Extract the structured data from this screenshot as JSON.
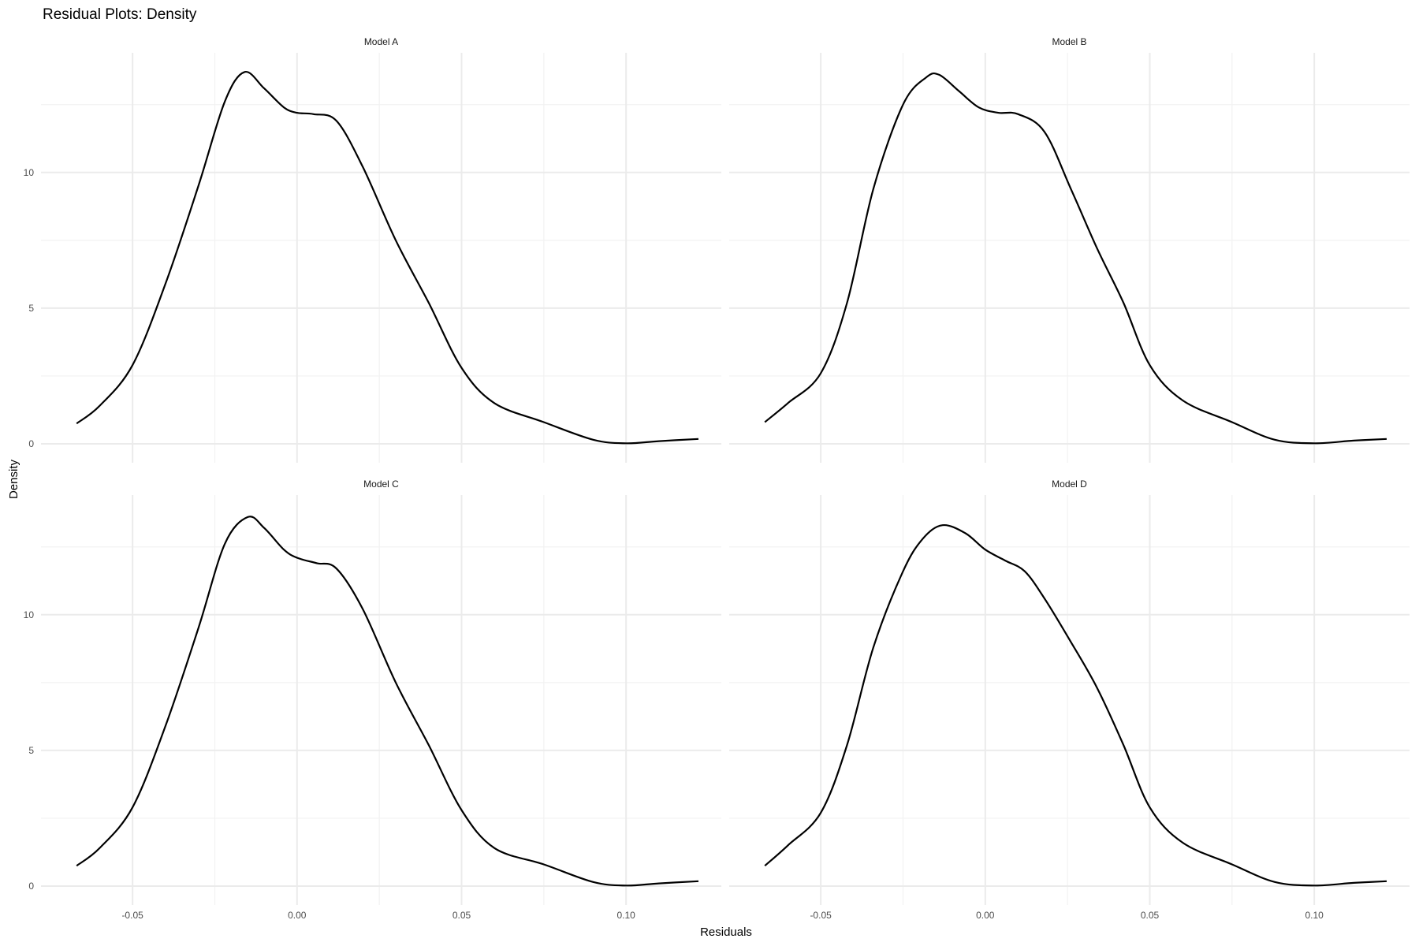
{
  "chart_data": {
    "type": "line",
    "title": "Residual Plots: Density",
    "xlabel": "Residuals",
    "ylabel": "Density",
    "xlim": [
      -0.068,
      0.122
    ],
    "ylim": [
      0,
      13.8
    ],
    "x_ticks": [
      -0.05,
      0.0,
      0.05,
      0.1
    ],
    "x_tick_labels": [
      "-0.05",
      "0.00",
      "0.05",
      "0.10"
    ],
    "y_ticks": [
      0,
      5,
      10
    ],
    "y_tick_labels": [
      "0",
      "5",
      "10"
    ],
    "grid": true,
    "legend": "none",
    "panels": [
      {
        "name": "Model A",
        "x": [
          -0.067,
          -0.06,
          -0.05,
          -0.04,
          -0.03,
          -0.022,
          -0.016,
          -0.01,
          -0.004,
          0.0,
          0.005,
          0.012,
          0.02,
          0.03,
          0.04,
          0.05,
          0.06,
          0.075,
          0.09,
          0.1,
          0.11,
          0.122
        ],
        "y": [
          0.75,
          1.4,
          2.9,
          5.9,
          9.5,
          12.6,
          13.7,
          13.1,
          12.4,
          12.2,
          12.15,
          11.9,
          10.2,
          7.5,
          5.2,
          2.8,
          1.5,
          0.8,
          0.15,
          0.02,
          0.1,
          0.18
        ]
      },
      {
        "name": "Model B",
        "x": [
          -0.067,
          -0.06,
          -0.05,
          -0.042,
          -0.034,
          -0.025,
          -0.018,
          -0.014,
          -0.008,
          -0.002,
          0.004,
          0.01,
          0.018,
          0.026,
          0.034,
          0.042,
          0.05,
          0.06,
          0.075,
          0.088,
          0.1,
          0.112,
          0.122
        ],
        "y": [
          0.8,
          1.5,
          2.6,
          5.2,
          9.4,
          12.5,
          13.5,
          13.6,
          13.0,
          12.4,
          12.2,
          12.15,
          11.5,
          9.4,
          7.2,
          5.2,
          2.9,
          1.6,
          0.8,
          0.15,
          0.02,
          0.12,
          0.18
        ]
      },
      {
        "name": "Model C",
        "x": [
          -0.067,
          -0.06,
          -0.05,
          -0.04,
          -0.03,
          -0.022,
          -0.015,
          -0.01,
          -0.004,
          0.0,
          0.006,
          0.012,
          0.02,
          0.03,
          0.04,
          0.05,
          0.06,
          0.075,
          0.09,
          0.1,
          0.11,
          0.122
        ],
        "y": [
          0.75,
          1.4,
          2.9,
          5.9,
          9.5,
          12.6,
          13.6,
          13.2,
          12.4,
          12.1,
          11.9,
          11.7,
          10.2,
          7.5,
          5.2,
          2.8,
          1.4,
          0.8,
          0.15,
          0.02,
          0.1,
          0.18
        ]
      },
      {
        "name": "Model D",
        "x": [
          -0.067,
          -0.06,
          -0.05,
          -0.042,
          -0.034,
          -0.025,
          -0.019,
          -0.013,
          -0.006,
          0.0,
          0.006,
          0.012,
          0.018,
          0.026,
          0.034,
          0.042,
          0.05,
          0.06,
          0.075,
          0.088,
          0.1,
          0.112,
          0.122
        ],
        "y": [
          0.75,
          1.5,
          2.7,
          5.2,
          8.8,
          11.6,
          12.8,
          13.3,
          13.0,
          12.4,
          12.0,
          11.6,
          10.6,
          9.0,
          7.3,
          5.2,
          2.9,
          1.6,
          0.8,
          0.15,
          0.02,
          0.12,
          0.18
        ]
      }
    ]
  }
}
